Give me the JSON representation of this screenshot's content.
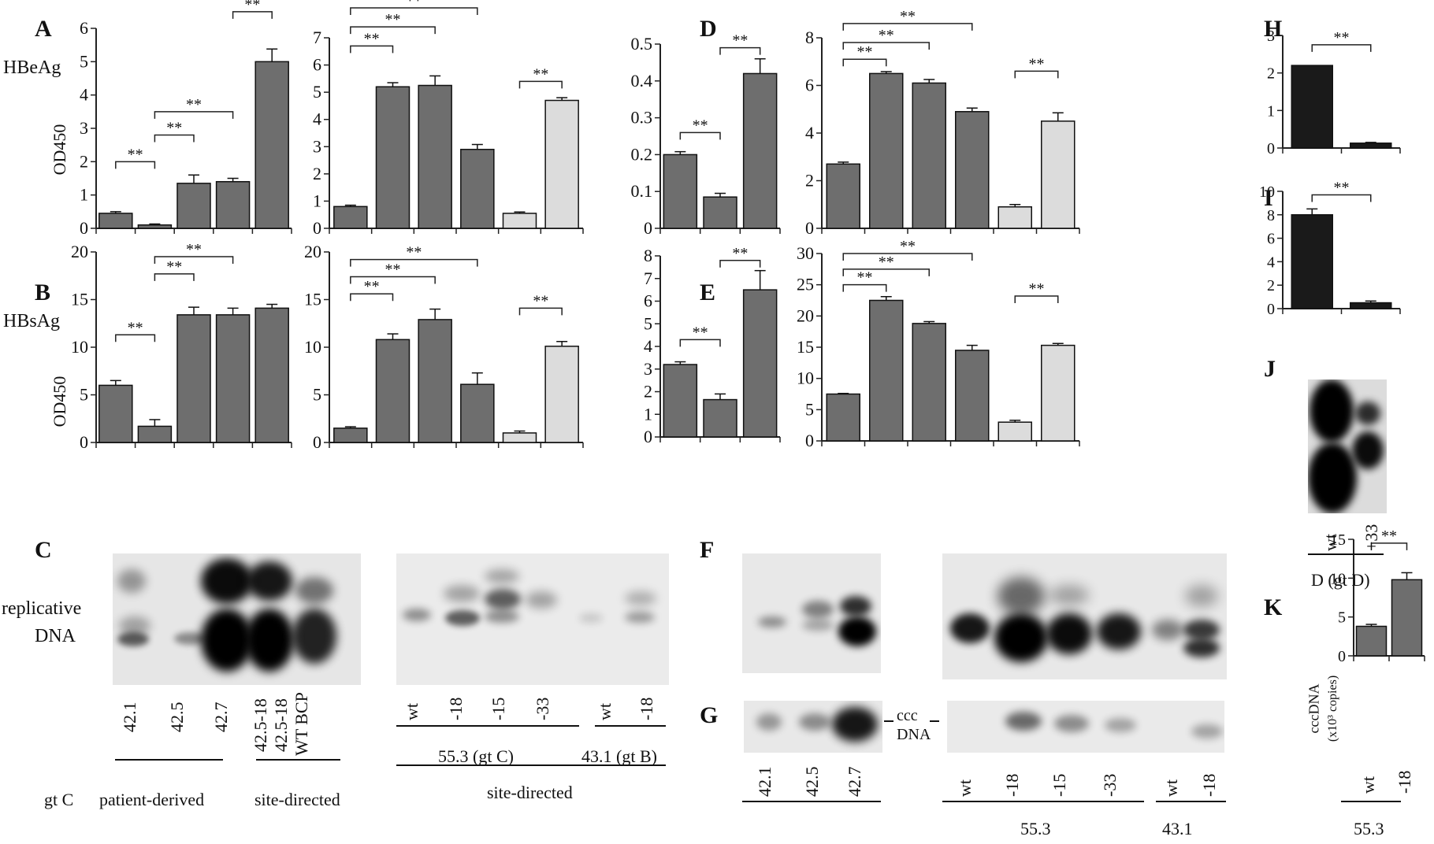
{
  "panel_letters": {
    "A": "A",
    "B": "B",
    "C": "C",
    "D": "D",
    "E": "E",
    "F": "F",
    "G": "G",
    "H": "H",
    "I": "I",
    "J": "J",
    "K": "K"
  },
  "labels": {
    "hbeag": "HBeAg",
    "hbsag": "HBsAg",
    "od_a": "OD450",
    "od_b": "OD450",
    "replicative": "replicative",
    "dna": "DNA",
    "ccc": "ccc",
    "ccc_dna": "DNA",
    "gt_c": "gt C",
    "patient_derived": "patient-derived",
    "site_directed_c": "site-directed",
    "g553_gtc": "55.3 (gt C)",
    "g431_gtb": "43.1 (gt B)",
    "site_directed_2": "site-directed",
    "g553_g": "55.3",
    "g431_g": "43.1",
    "d_gtd": "D (gt D)",
    "k_553": "55.3",
    "k_ylabel_1": "cccDNA",
    "k_ylabel_2": "(x10³ copies)",
    "sig": "**"
  },
  "lane_labels": {
    "c_left": [
      "42.1",
      "42.5",
      "42.7",
      "42.5-18",
      "42.5-18",
      "WT BCP"
    ],
    "c_right": [
      "wt",
      "-18",
      "-15",
      "-33",
      "wt",
      "-18"
    ],
    "g_left": [
      "42.1",
      "42.5",
      "42.7"
    ],
    "g_right": [
      "wt",
      "-18",
      "-15",
      "-33",
      "wt",
      "-18"
    ],
    "j": [
      "wt",
      "+33"
    ],
    "k": [
      "wt",
      "-18"
    ]
  },
  "colors": {
    "dark_gray_bar": "#6e6e6e",
    "light_gray_bar": "#dcdcdc",
    "black_bar": "#1a1a1a"
  },
  "chart_data": [
    {
      "id": "A-left",
      "type": "bar",
      "ylim": [
        0,
        6
      ],
      "yticks": [
        0,
        1,
        2,
        3,
        4,
        5,
        6
      ],
      "values": [
        0.45,
        0.1,
        1.35,
        1.4,
        5.0
      ],
      "errors": [
        0.05,
        0.03,
        0.25,
        0.1,
        0.38
      ],
      "bar_colors": [
        "dark",
        "dark",
        "dark",
        "dark",
        "dark"
      ],
      "sig": [
        {
          "from": 0,
          "to": 1,
          "level": 2.0
        },
        {
          "from": 1,
          "to": 2,
          "level": 2.8
        },
        {
          "from": 1,
          "to": 3,
          "level": 3.5
        },
        {
          "from": 3,
          "to": 4,
          "level": 6.5
        }
      ]
    },
    {
      "id": "A-right",
      "type": "bar",
      "ylim": [
        0,
        7
      ],
      "yticks": [
        0,
        1,
        2,
        3,
        4,
        5,
        6,
        7
      ],
      "values": [
        0.8,
        5.2,
        5.25,
        2.9,
        0.55,
        4.7
      ],
      "errors": [
        0.05,
        0.15,
        0.35,
        0.18,
        0.05,
        0.1
      ],
      "bar_colors": [
        "dark",
        "dark",
        "dark",
        "dark",
        "light",
        "light"
      ],
      "sig": [
        {
          "from": 0,
          "to": 1,
          "level": 6.7
        },
        {
          "from": 0,
          "to": 2,
          "level": 7.4
        },
        {
          "from": 0,
          "to": 3,
          "level": 8.1
        },
        {
          "from": 4,
          "to": 5,
          "level": 5.4
        }
      ]
    },
    {
      "id": "B-left",
      "type": "bar",
      "ylim": [
        0,
        20
      ],
      "yticks": [
        0,
        5,
        10,
        15,
        20
      ],
      "values": [
        6.0,
        1.7,
        13.4,
        13.4,
        14.1
      ],
      "errors": [
        0.5,
        0.7,
        0.8,
        0.7,
        0.4
      ],
      "bar_colors": [
        "dark",
        "dark",
        "dark",
        "dark",
        "dark"
      ],
      "sig": [
        {
          "from": 0,
          "to": 1,
          "level": 11.3
        },
        {
          "from": 1,
          "to": 2,
          "level": 17.7
        },
        {
          "from": 1,
          "to": 3,
          "level": 19.5
        }
      ]
    },
    {
      "id": "B-right",
      "type": "bar",
      "ylim": [
        0,
        20
      ],
      "yticks": [
        0,
        5,
        10,
        15,
        20
      ],
      "values": [
        1.5,
        10.8,
        12.9,
        6.1,
        1.0,
        10.1
      ],
      "errors": [
        0.15,
        0.6,
        1.1,
        1.2,
        0.2,
        0.5
      ],
      "bar_colors": [
        "dark",
        "dark",
        "dark",
        "dark",
        "light",
        "light"
      ],
      "sig": [
        {
          "from": 0,
          "to": 1,
          "level": 15.6
        },
        {
          "from": 0,
          "to": 2,
          "level": 17.4
        },
        {
          "from": 0,
          "to": 3,
          "level": 19.2
        },
        {
          "from": 4,
          "to": 5,
          "level": 14.1
        }
      ]
    },
    {
      "id": "D-left",
      "type": "bar",
      "ylim": [
        0,
        0.5
      ],
      "yticks": [
        0,
        0.1,
        0.2,
        0.3,
        0.4,
        0.5
      ],
      "ytick_labels": [
        "0",
        "0.1",
        "0.2",
        "0.3",
        "0.4",
        "0.5"
      ],
      "values": [
        0.2,
        0.085,
        0.42
      ],
      "errors": [
        0.008,
        0.01,
        0.04
      ],
      "bar_colors": [
        "dark",
        "dark",
        "dark"
      ],
      "sig": [
        {
          "from": 0,
          "to": 1,
          "level": 0.26
        },
        {
          "from": 1,
          "to": 2,
          "level": 0.49
        }
      ]
    },
    {
      "id": "D-right",
      "type": "bar",
      "ylim": [
        0,
        8
      ],
      "yticks": [
        0,
        2,
        4,
        6,
        8
      ],
      "values": [
        2.7,
        6.5,
        6.1,
        4.9,
        0.9,
        4.5
      ],
      "errors": [
        0.08,
        0.08,
        0.15,
        0.15,
        0.1,
        0.35
      ],
      "bar_colors": [
        "dark",
        "dark",
        "dark",
        "dark",
        "light",
        "light"
      ],
      "sig": [
        {
          "from": 0,
          "to": 1,
          "level": 7.1
        },
        {
          "from": 0,
          "to": 2,
          "level": 7.8
        },
        {
          "from": 0,
          "to": 3,
          "level": 8.6
        },
        {
          "from": 4,
          "to": 5,
          "level": 6.6
        }
      ]
    },
    {
      "id": "E-left",
      "type": "bar",
      "ylim": [
        0,
        8
      ],
      "yticks": [
        0,
        1,
        2,
        3,
        4,
        5,
        6,
        7,
        8
      ],
      "values": [
        3.2,
        1.65,
        6.5
      ],
      "errors": [
        0.12,
        0.25,
        0.85
      ],
      "bar_colors": [
        "dark",
        "dark",
        "dark"
      ],
      "sig": [
        {
          "from": 0,
          "to": 1,
          "level": 4.3
        },
        {
          "from": 1,
          "to": 2,
          "level": 7.8
        }
      ]
    },
    {
      "id": "E-right",
      "type": "bar",
      "ylim": [
        0,
        30
      ],
      "yticks": [
        0,
        5,
        10,
        15,
        20,
        25,
        30
      ],
      "values": [
        7.5,
        22.5,
        18.8,
        14.5,
        3.0,
        15.3
      ],
      "errors": [
        0.1,
        0.6,
        0.3,
        0.8,
        0.3,
        0.3
      ],
      "bar_colors": [
        "dark",
        "dark",
        "dark",
        "dark",
        "light",
        "light"
      ],
      "sig": [
        {
          "from": 0,
          "to": 1,
          "level": 25.0
        },
        {
          "from": 0,
          "to": 2,
          "level": 27.5
        },
        {
          "from": 0,
          "to": 3,
          "level": 30.0
        },
        {
          "from": 4,
          "to": 5,
          "level": 23.2
        }
      ]
    },
    {
      "id": "H",
      "type": "bar",
      "ylim": [
        0,
        3
      ],
      "yticks": [
        0,
        1,
        2,
        3
      ],
      "values": [
        2.2,
        0.13
      ],
      "errors": [
        0,
        0.02
      ],
      "bar_colors": [
        "black",
        "black"
      ],
      "sig": [
        {
          "from": 0,
          "to": 1,
          "level": 2.75
        }
      ]
    },
    {
      "id": "I",
      "type": "bar",
      "ylim": [
        0,
        10
      ],
      "yticks": [
        0,
        2,
        4,
        6,
        8,
        10
      ],
      "values": [
        8.0,
        0.5
      ],
      "errors": [
        0.5,
        0.15
      ],
      "bar_colors": [
        "black",
        "black"
      ],
      "sig": [
        {
          "from": 0,
          "to": 1,
          "level": 9.7
        }
      ]
    },
    {
      "id": "K",
      "type": "bar",
      "ylim": [
        0,
        15
      ],
      "yticks": [
        0,
        5,
        10,
        15
      ],
      "values": [
        3.8,
        9.8
      ],
      "errors": [
        0.25,
        0.9
      ],
      "bar_colors": [
        "dark",
        "dark"
      ],
      "sig": [
        {
          "from": 0,
          "to": 1,
          "level": 14.5
        }
      ]
    }
  ]
}
